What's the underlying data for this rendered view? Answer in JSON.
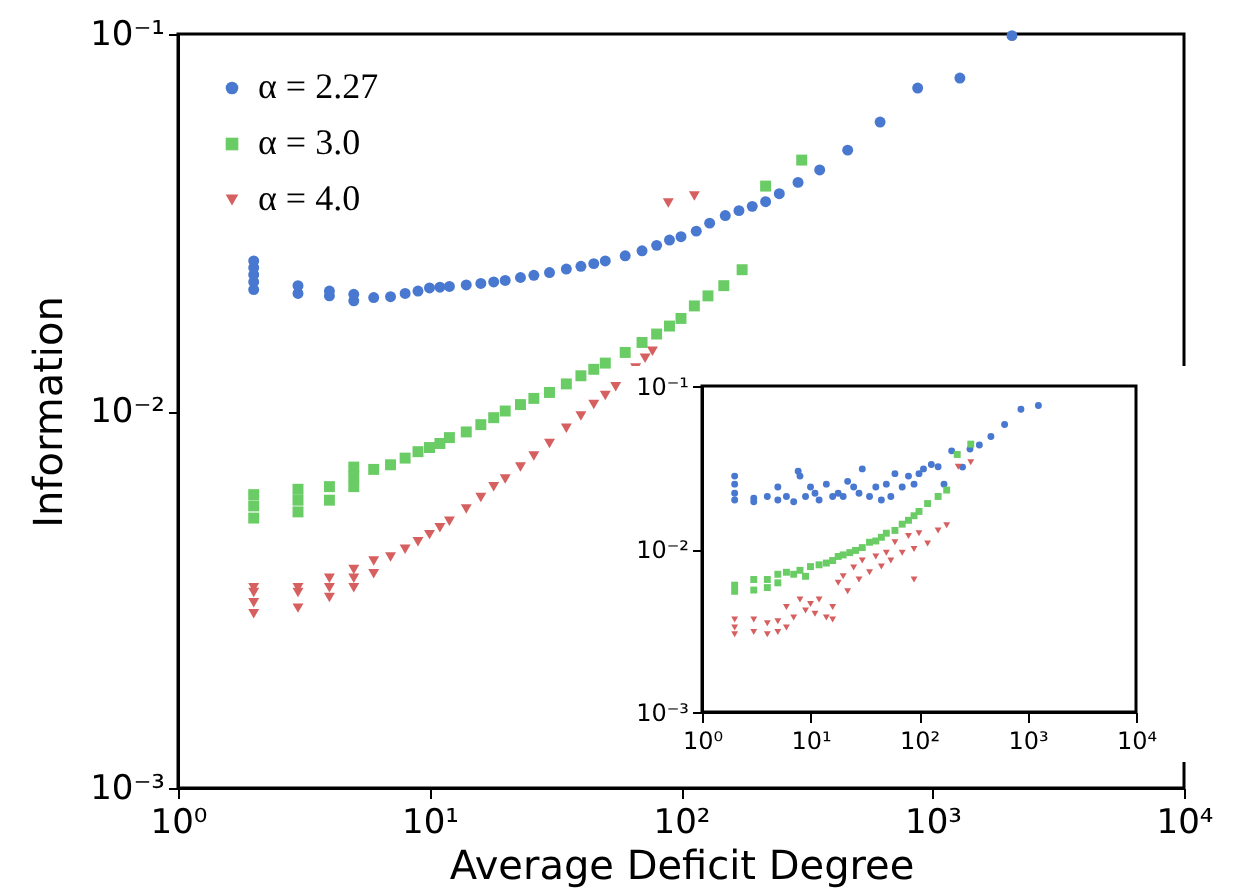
{
  "chart_data": [
    {
      "type": "scatter",
      "xlabel": "Average Deficit Degree",
      "ylabel": "Information",
      "log": "xy",
      "legend": "top left",
      "grid": false,
      "xlim": [
        1,
        10000
      ],
      "xticks": [
        {
          "value": 1,
          "label": "10⁰"
        },
        {
          "value": 10,
          "label": "10¹"
        },
        {
          "value": 100,
          "label": "10²"
        },
        {
          "value": 1000,
          "label": "10³"
        },
        {
          "value": 10000,
          "label": "10⁴"
        }
      ],
      "ylim": [
        0.001,
        0.1
      ],
      "yticks": [
        {
          "value": 0.001,
          "label": "10⁻³"
        },
        {
          "value": 0.01,
          "label": "10⁻²"
        },
        {
          "value": 0.1,
          "label": "10⁻¹"
        }
      ],
      "series": [
        {
          "name": "α = 2.27",
          "color": "#4878cf",
          "marker": "circle",
          "x": [
            2,
            2,
            2,
            2,
            2,
            3,
            3,
            4,
            4,
            5,
            5,
            6,
            7,
            8,
            9,
            10,
            11,
            12,
            14,
            16,
            18,
            20,
            23,
            26,
            30,
            35,
            40,
            45,
            50,
            60,
            70,
            80,
            90,
            100,
            115,
            130,
            150,
            170,
            192,
            217,
            246,
            292,
            356,
            460,
            619,
            873,
            1285,
            2070
          ],
          "values": [
            0.021,
            0.022,
            0.023,
            0.024,
            0.025,
            0.0205,
            0.0215,
            0.0202,
            0.0208,
            0.0196,
            0.0204,
            0.02,
            0.0201,
            0.0205,
            0.0208,
            0.0212,
            0.0213,
            0.0214,
            0.0216,
            0.0218,
            0.022,
            0.0222,
            0.0226,
            0.0229,
            0.0233,
            0.0238,
            0.0242,
            0.0246,
            0.025,
            0.0258,
            0.0266,
            0.0275,
            0.0284,
            0.029,
            0.03,
            0.0315,
            0.033,
            0.034,
            0.0349,
            0.0359,
            0.0377,
            0.0404,
            0.0436,
            0.0492,
            0.0584,
            0.0719,
            0.0764,
            0.099
          ]
        },
        {
          "name": "α = 3.0",
          "color": "#6acc65",
          "marker": "square",
          "x": [
            2,
            2,
            2,
            3,
            3,
            3,
            4,
            4,
            5,
            5,
            5,
            6,
            7,
            8,
            9,
            10,
            11,
            12,
            14,
            16,
            18,
            20,
            23,
            26,
            30,
            35,
            40,
            45,
            50,
            60,
            70,
            80,
            90,
            100,
            113,
            128,
            148,
            175,
            217,
            302
          ],
          "values": [
            0.0052,
            0.0056,
            0.006,
            0.0054,
            0.0058,
            0.0062,
            0.0058,
            0.0063,
            0.0063,
            0.0067,
            0.0071,
            0.007,
            0.0072,
            0.0075,
            0.0078,
            0.008,
            0.0082,
            0.0085,
            0.0088,
            0.0092,
            0.0096,
            0.01,
            0.0104,
            0.0108,
            0.0112,
            0.0118,
            0.0124,
            0.0129,
            0.0134,
            0.0143,
            0.0152,
            0.016,
            0.0168,
            0.0176,
            0.019,
            0.0202,
            0.0215,
            0.0237,
            0.0395,
            0.0463
          ]
        },
        {
          "name": "α = 4.0",
          "color": "#d65f5f",
          "marker": "triangle",
          "x": [
            2,
            2,
            2,
            2,
            3,
            3,
            3,
            4,
            4,
            4,
            5,
            5,
            5,
            6,
            6,
            7,
            8,
            9,
            10,
            11,
            12,
            14,
            16,
            18,
            20,
            23,
            26,
            30,
            35,
            40,
            45,
            50,
            55,
            66,
            72,
            77,
            89,
            113
          ],
          "values": [
            0.0029,
            0.0031,
            0.0033,
            0.0034,
            0.003,
            0.0033,
            0.0034,
            0.0032,
            0.0034,
            0.0036,
            0.0034,
            0.0036,
            0.0038,
            0.0037,
            0.004,
            0.0041,
            0.0043,
            0.0045,
            0.0047,
            0.0049,
            0.0051,
            0.0055,
            0.0059,
            0.0063,
            0.0066,
            0.0071,
            0.0076,
            0.0082,
            0.009,
            0.0097,
            0.0104,
            0.011,
            0.0116,
            0.013,
            0.0138,
            0.0144,
            0.0356,
            0.0372
          ]
        }
      ]
    },
    {
      "type": "scatter",
      "log": "xy",
      "grid": false,
      "xlim": [
        1,
        10000
      ],
      "xticks": [
        {
          "value": 1,
          "label": "10⁰"
        },
        {
          "value": 10,
          "label": "10¹"
        },
        {
          "value": 100,
          "label": "10²"
        },
        {
          "value": 1000,
          "label": "10³"
        },
        {
          "value": 10000,
          "label": "10⁴"
        }
      ],
      "ylim": [
        0.001,
        0.1
      ],
      "yticks": [
        {
          "value": 0.001,
          "label": "10⁻³"
        },
        {
          "value": 0.01,
          "label": "10⁻²"
        },
        {
          "value": 0.1,
          "label": "10⁻¹"
        }
      ],
      "series": [
        {
          "color": "#4878cf",
          "marker": "circle",
          "x": [
            2,
            2,
            2,
            2,
            3,
            3,
            4,
            5,
            5,
            6,
            7,
            7.7,
            8,
            9,
            10,
            11,
            12,
            14,
            16,
            18,
            20,
            22,
            25,
            28,
            30,
            35,
            40,
            45,
            50,
            55,
            60,
            70,
            80,
            90,
            100,
            110,
            130,
            150,
            170,
            200,
            252,
            295,
            360,
            460,
            615,
            870,
            1260
          ],
          "values": [
            0.02,
            0.022,
            0.025,
            0.028,
            0.0195,
            0.0205,
            0.021,
            0.02,
            0.024,
            0.021,
            0.0195,
            0.03,
            0.028,
            0.021,
            0.024,
            0.022,
            0.02,
            0.025,
            0.021,
            0.022,
            0.021,
            0.026,
            0.024,
            0.022,
            0.031,
            0.021,
            0.024,
            0.02,
            0.025,
            0.021,
            0.029,
            0.024,
            0.028,
            0.025,
            0.029,
            0.031,
            0.033,
            0.032,
            0.025,
            0.04,
            0.0318,
            0.041,
            0.0435,
            0.049,
            0.058,
            0.072,
            0.076
          ]
        },
        {
          "color": "#6acc65",
          "marker": "square",
          "x": [
            2,
            2,
            3,
            3,
            4,
            4,
            5,
            5,
            6,
            7,
            8,
            9,
            10,
            12,
            14,
            16,
            18,
            20,
            23,
            26,
            30,
            35,
            40,
            45,
            50,
            60,
            70,
            80,
            90,
            100,
            120,
            150,
            180,
            225,
            300
          ],
          "values": [
            0.0055,
            0.006,
            0.0056,
            0.0065,
            0.0058,
            0.0065,
            0.0062,
            0.007,
            0.0072,
            0.007,
            0.0074,
            0.0068,
            0.0078,
            0.008,
            0.0082,
            0.0085,
            0.009,
            0.0092,
            0.0095,
            0.0098,
            0.0102,
            0.011,
            0.0112,
            0.0118,
            0.0125,
            0.013,
            0.0142,
            0.015,
            0.016,
            0.017,
            0.019,
            0.021,
            0.023,
            0.038,
            0.044
          ]
        },
        {
          "color": "#d65f5f",
          "marker": "triangle",
          "x": [
            2,
            2,
            2,
            3,
            3,
            4,
            4,
            5,
            5,
            6,
            6,
            7,
            8,
            9,
            10,
            11,
            12,
            14,
            16,
            16,
            18,
            20,
            22,
            25,
            28,
            30,
            35,
            40,
            45,
            50,
            55,
            60,
            70,
            80,
            90,
            90,
            100,
            120,
            150,
            180,
            230,
            300
          ],
          "values": [
            0.003,
            0.0033,
            0.0037,
            0.0031,
            0.0037,
            0.003,
            0.0035,
            0.0031,
            0.0036,
            0.0033,
            0.0044,
            0.0038,
            0.0049,
            0.0042,
            0.0046,
            0.004,
            0.0049,
            0.0038,
            0.0037,
            0.0044,
            0.0062,
            0.0068,
            0.0055,
            0.0077,
            0.0065,
            0.0085,
            0.0072,
            0.009,
            0.0078,
            0.0095,
            0.0085,
            0.011,
            0.0095,
            0.012,
            0.01,
            0.0065,
            0.0125,
            0.0108,
            0.013,
            0.014,
            0.032,
            0.034
          ]
        }
      ]
    }
  ]
}
